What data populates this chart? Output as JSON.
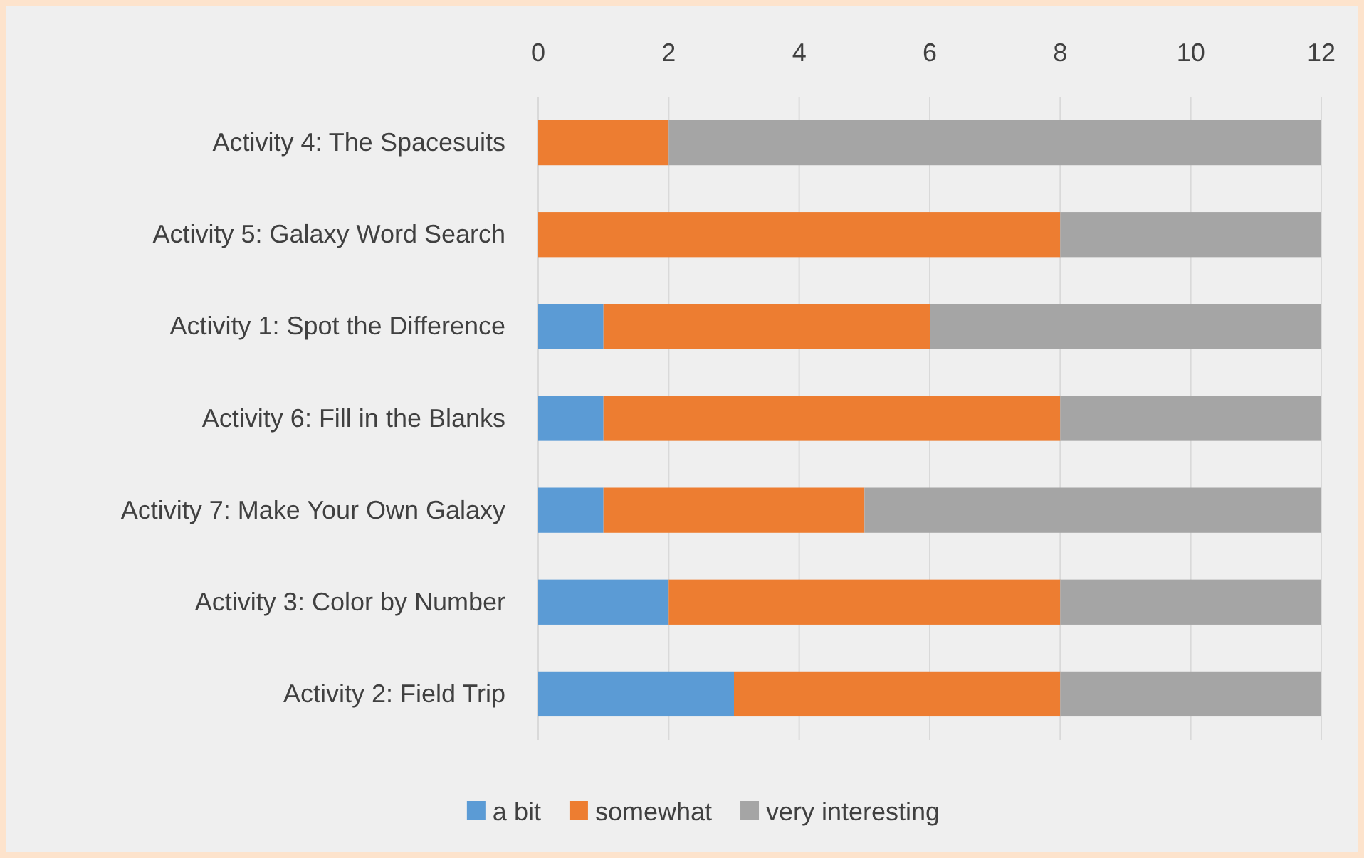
{
  "chart_data": {
    "type": "bar",
    "orientation": "horizontal",
    "stacked": true,
    "categories": [
      "Activity 4: The Spacesuits",
      "Activity 5: Galaxy Word Search",
      "Activity 1: Spot the Difference",
      "Activity 6: Fill in the Blanks",
      "Activity 7: Make Your Own Galaxy",
      "Activity 3: Color by Number",
      "Activity 2: Field Trip"
    ],
    "series": [
      {
        "name": "a bit",
        "color": "#5b9bd5",
        "values": [
          0,
          0,
          1,
          1,
          1,
          2,
          3
        ]
      },
      {
        "name": "somewhat",
        "color": "#ed7d31",
        "values": [
          2,
          8,
          5,
          7,
          4,
          6,
          5
        ]
      },
      {
        "name": "very interesting",
        "color": "#a5a5a5",
        "values": [
          10,
          4,
          6,
          4,
          7,
          4,
          4
        ]
      }
    ],
    "xlim": [
      0,
      12
    ],
    "xticks": [
      0,
      2,
      4,
      6,
      8,
      10,
      12
    ],
    "grid": "x",
    "legend": "bottom"
  }
}
